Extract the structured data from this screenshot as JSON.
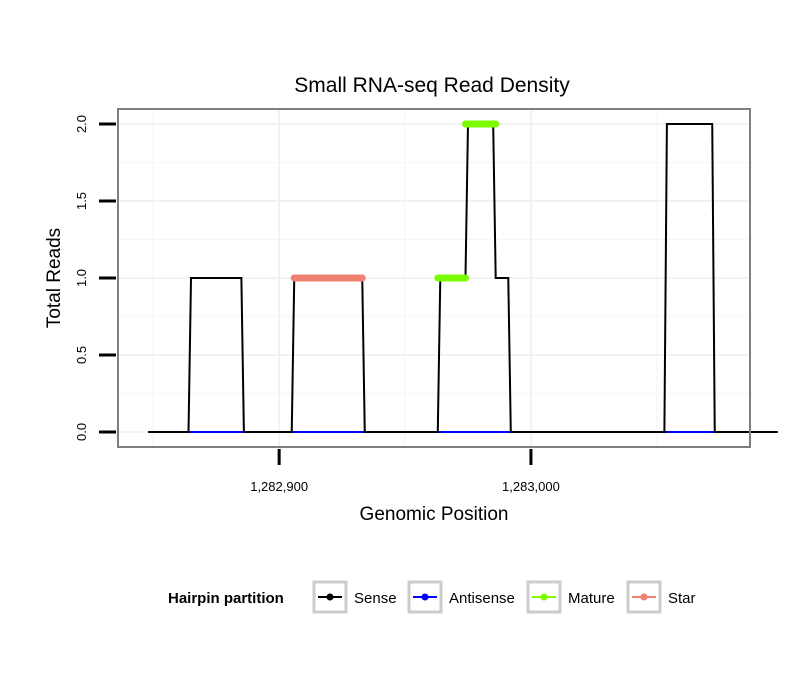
{
  "chart_data": {
    "type": "line",
    "title": "Small RNA-seq Read Density",
    "xlabel": "Genomic Position",
    "ylabel": "Total Reads",
    "xlim": [
      1282836,
      1283087
    ],
    "ylim": [
      -0.0975,
      2.0975
    ],
    "x_ticks": [
      1282900,
      1283000
    ],
    "x_tick_labels": [
      "1,282,900",
      "1,283,000"
    ],
    "y_ticks": [
      0,
      0.5,
      1,
      1.5,
      2
    ],
    "y_tick_labels": [
      "0.0",
      "0.5",
      "1.0",
      "1.5",
      "2.0"
    ],
    "grid": true,
    "series": [
      {
        "name": "Sense",
        "color": "#000000",
        "x": [
          1282848,
          1282864,
          1282865,
          1282885,
          1282886,
          1282905,
          1282906,
          1282933,
          1282934,
          1282963,
          1282964,
          1282974,
          1282975,
          1282985,
          1282986,
          1282991,
          1282992,
          1283053,
          1283054,
          1283072,
          1283073,
          1283098
        ],
        "y": [
          0,
          0,
          1,
          1,
          0,
          0,
          1,
          1,
          0,
          0,
          1,
          1,
          2,
          2,
          1,
          1,
          0,
          0,
          2,
          2,
          0,
          0
        ]
      },
      {
        "name": "Antisense",
        "color": "#0000ff",
        "x": [
          1282848,
          1283098
        ],
        "y": [
          0,
          0
        ]
      },
      {
        "name": "Mature",
        "color": "#7cfc00",
        "segments": [
          {
            "x": [
              1282963,
              1282974
            ],
            "y": [
              1,
              1
            ]
          },
          {
            "x": [
              1282974,
              1282986
            ],
            "y": [
              2,
              2
            ]
          }
        ]
      },
      {
        "name": "Star",
        "color": "#f08070",
        "segments": [
          {
            "x": [
              1282906,
              1282933
            ],
            "y": [
              1,
              1
            ]
          }
        ]
      }
    ],
    "legend": {
      "title": "Hairpin partition",
      "placement": "bottom",
      "items": [
        {
          "label": "Sense",
          "color": "#000000"
        },
        {
          "label": "Antisense",
          "color": "#0000ff"
        },
        {
          "label": "Mature",
          "color": "#7cfc00"
        },
        {
          "label": "Star",
          "color": "#f08070"
        }
      ]
    }
  }
}
